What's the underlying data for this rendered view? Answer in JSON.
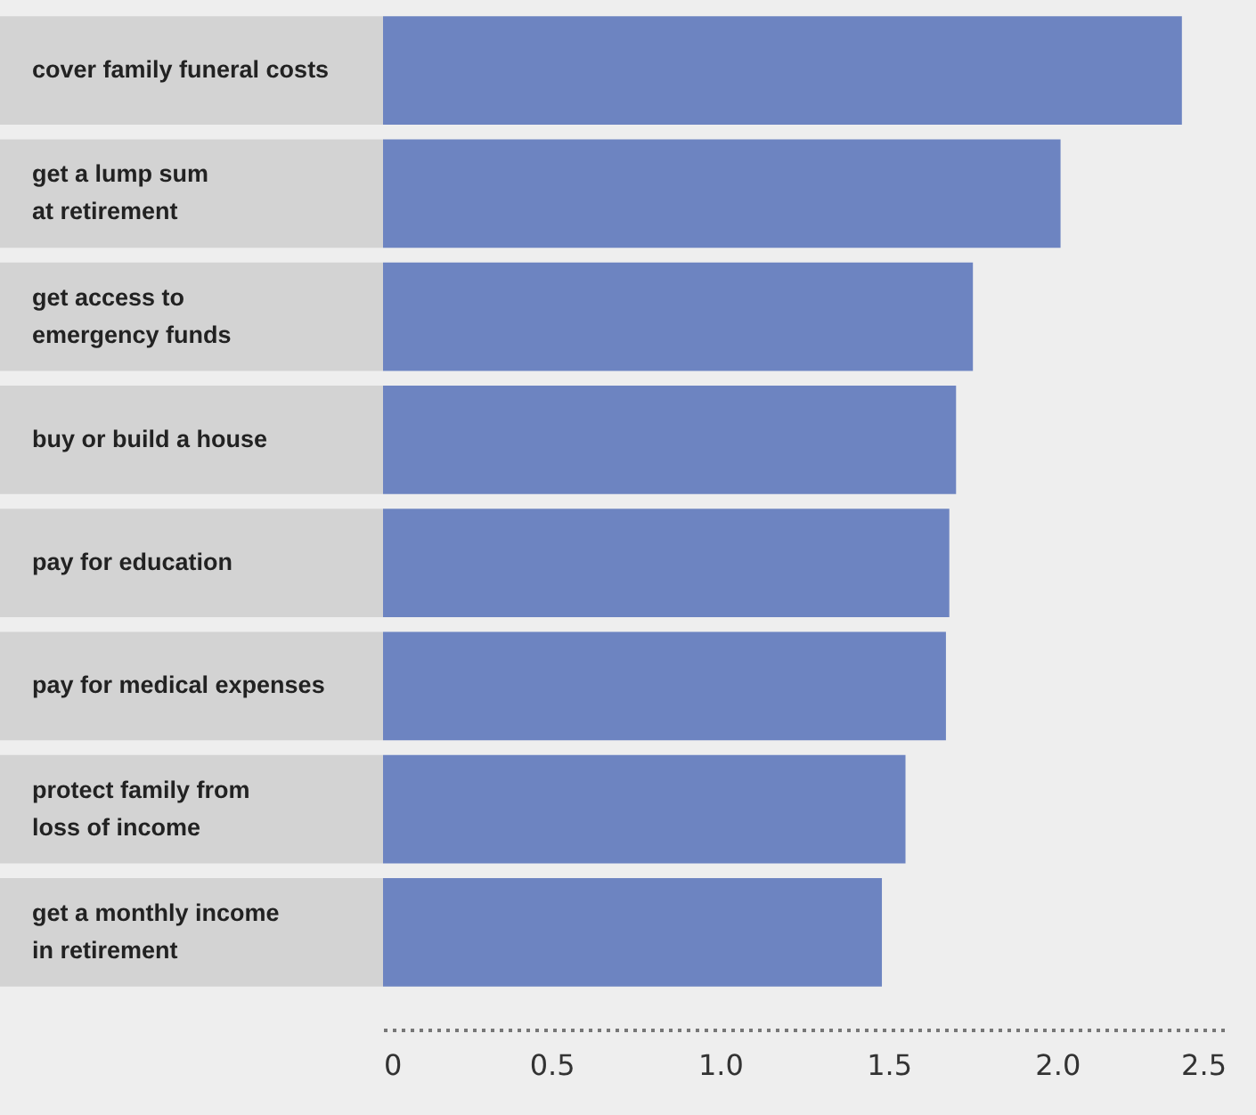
{
  "chart_data": {
    "type": "bar",
    "orientation": "horizontal",
    "categories": [
      "cover family funeral costs",
      "get a lump sum\nat retirement",
      "get access to\nemergency funds",
      "buy or build a house",
      "pay for education",
      "pay for medical expenses",
      "protect family from\nloss of income",
      "get a monthly income\nin retirement"
    ],
    "values": [
      2.37,
      2.01,
      1.75,
      1.7,
      1.68,
      1.67,
      1.55,
      1.48
    ],
    "color": "#6d84c1",
    "xlim": [
      0,
      2.5
    ],
    "xticks": [
      0,
      0.5,
      {
        "value": 1,
        "label": "1.0"
      },
      1.5,
      {
        "value": 2,
        "label": "2.0"
      },
      2.5
    ],
    "grid": false
  }
}
